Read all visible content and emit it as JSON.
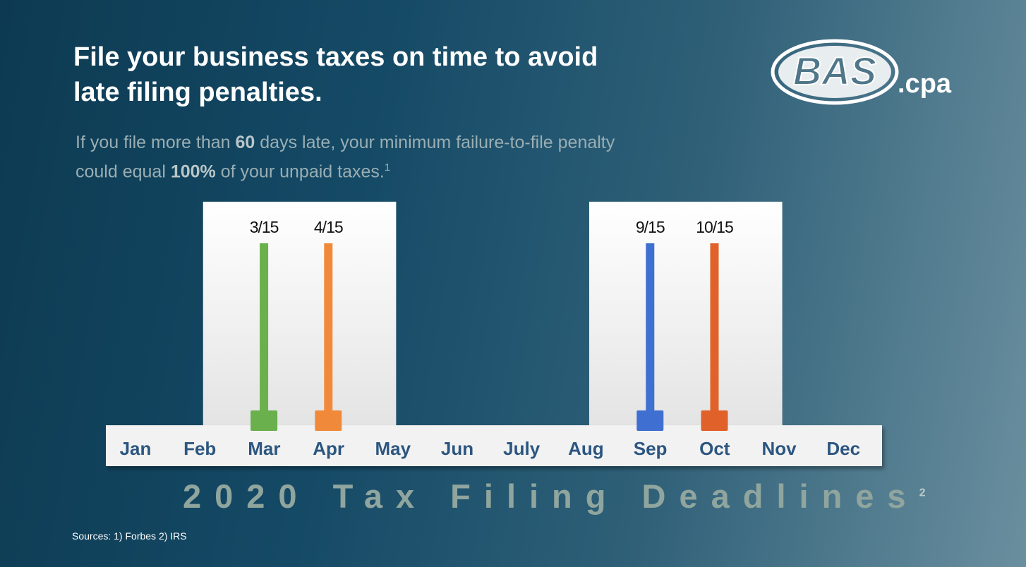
{
  "headline": {
    "line1": "File your business taxes on time to avoid",
    "line2": "late filing penalties."
  },
  "subtext": {
    "part1": "If you file more than ",
    "bold1": "60",
    "part2": " days late, your minimum failure-to-file penalty",
    "part3": "could equal ",
    "bold2": "100%",
    "part4": " of your unpaid taxes.",
    "footnote": "1"
  },
  "logo": {
    "text": "BAS",
    "suffix": ".cpa"
  },
  "chart_data": {
    "type": "bar",
    "title": "2020 Tax Filing Deadlines",
    "title_footnote": "2",
    "categories": [
      "Jan",
      "Feb",
      "Mar",
      "Apr",
      "May",
      "Jun",
      "July",
      "Aug",
      "Sep",
      "Oct",
      "Nov",
      "Dec"
    ],
    "highlight_ranges": [
      [
        "Feb",
        "Apr"
      ],
      [
        "Aug",
        "Oct"
      ]
    ],
    "deadlines": [
      {
        "label": "3/15",
        "month": "Mar",
        "color": "#6ab04c"
      },
      {
        "label": "4/15",
        "month": "Apr",
        "color": "#f08a3a"
      },
      {
        "label": "9/15",
        "month": "Sep",
        "color": "#3f6fd0"
      },
      {
        "label": "10/15",
        "month": "Oct",
        "color": "#e0622a"
      }
    ],
    "colors": {
      "month_label": "#2c5680",
      "timeline_bar": "#f2f2f2",
      "highlight_panel": "#ffffff"
    }
  },
  "sources": "Sources: 1) Forbes 2) IRS"
}
